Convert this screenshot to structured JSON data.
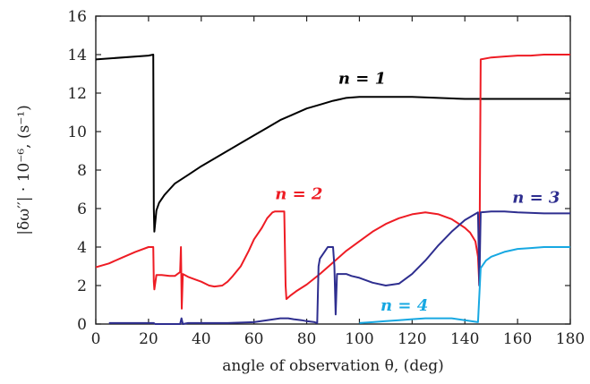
{
  "chart_data": {
    "type": "line",
    "title": "",
    "xlabel": "angle of observation θ, (deg)",
    "ylabel": "|δω′′| · 10⁻⁶, (s⁻¹)",
    "xlim": [
      0,
      180
    ],
    "ylim": [
      0,
      16
    ],
    "xticks": [
      "0",
      "20",
      "40",
      "60",
      "80",
      "100",
      "120",
      "140",
      "160",
      "180"
    ],
    "yticks": [
      "0",
      "2",
      "4",
      "6",
      "8",
      "10",
      "12",
      "14",
      "16"
    ],
    "grid": false,
    "legend": "none",
    "series": [
      {
        "name": "n = 1",
        "color": "#000000",
        "label_at": [
          92,
          12.5
        ],
        "x": [
          0,
          20,
          21.8,
          22,
          22.2,
          23,
          24,
          26,
          28,
          30,
          35,
          40,
          45,
          50,
          55,
          60,
          65,
          70,
          75,
          80,
          85,
          90,
          95,
          100,
          110,
          120,
          130,
          140,
          150,
          160,
          170,
          180
        ],
        "y": [
          13.75,
          13.95,
          14.0,
          6.0,
          4.8,
          5.9,
          6.3,
          6.7,
          7.0,
          7.3,
          7.75,
          8.2,
          8.6,
          9.0,
          9.4,
          9.8,
          10.2,
          10.6,
          10.9,
          11.2,
          11.4,
          11.6,
          11.75,
          11.8,
          11.8,
          11.8,
          11.75,
          11.7,
          11.7,
          11.7,
          11.7,
          11.7
        ]
      },
      {
        "name": "n = 2",
        "color": "#ee1c24",
        "label_at": [
          68,
          6.5
        ],
        "x": [
          0,
          5,
          10,
          15,
          20,
          21.8,
          22,
          22.2,
          23,
          25,
          28,
          30,
          31,
          32,
          32.3,
          32.6,
          33,
          35,
          38,
          40,
          43,
          45,
          48,
          50,
          52,
          55,
          58,
          60,
          63,
          65,
          67,
          68,
          70,
          71.5,
          72,
          72.3,
          74,
          76,
          80,
          85,
          90,
          95,
          100,
          105,
          110,
          115,
          120,
          125,
          130,
          135,
          140,
          142,
          144,
          145,
          145.5,
          146,
          150,
          155,
          160,
          165,
          170,
          175,
          180
        ],
        "y": [
          2.95,
          3.15,
          3.45,
          3.75,
          4.0,
          4.0,
          2.2,
          1.8,
          2.55,
          2.55,
          2.5,
          2.5,
          2.6,
          2.7,
          4.0,
          0.8,
          2.6,
          2.45,
          2.3,
          2.2,
          2.0,
          1.95,
          2.0,
          2.2,
          2.5,
          3.0,
          3.8,
          4.4,
          5.0,
          5.5,
          5.8,
          5.85,
          5.85,
          5.85,
          2.0,
          1.3,
          1.5,
          1.7,
          2.05,
          2.6,
          3.2,
          3.8,
          4.3,
          4.8,
          5.2,
          5.5,
          5.7,
          5.8,
          5.7,
          5.45,
          5.0,
          4.75,
          4.3,
          3.5,
          2.0,
          13.75,
          13.85,
          13.9,
          13.95,
          13.95,
          14.0,
          14.0,
          14.0
        ]
      },
      {
        "name": "n = 3",
        "color": "#2e2e8f",
        "label_at": [
          158,
          6.3
        ],
        "x": [
          5,
          10,
          15,
          20,
          22,
          22.5,
          30,
          32,
          32.5,
          33,
          35,
          40,
          50,
          60,
          65,
          70,
          73,
          75,
          78,
          80,
          83,
          84,
          84.5,
          85,
          87,
          88,
          90,
          90.5,
          91,
          91.5,
          93,
          95,
          97,
          100,
          105,
          110,
          115,
          120,
          125,
          130,
          135,
          140,
          145,
          145.5,
          146,
          150,
          155,
          160,
          170,
          180
        ],
        "y": [
          0.05,
          0.05,
          0.05,
          0.05,
          0.05,
          0.0,
          0.0,
          0.0,
          0.3,
          0.0,
          0.05,
          0.05,
          0.05,
          0.1,
          0.2,
          0.3,
          0.3,
          0.25,
          0.2,
          0.15,
          0.1,
          0.05,
          3.0,
          3.4,
          3.8,
          4.0,
          4.0,
          3.0,
          0.5,
          2.6,
          2.6,
          2.6,
          2.5,
          2.4,
          2.15,
          2.0,
          2.1,
          2.6,
          3.3,
          4.1,
          4.8,
          5.4,
          5.8,
          2.0,
          5.8,
          5.85,
          5.85,
          5.8,
          5.75,
          5.75
        ]
      },
      {
        "name": "n = 4",
        "color": "#17a8e2",
        "label_at": [
          108,
          0.7
        ],
        "x": [
          100,
          105,
          110,
          115,
          120,
          125,
          130,
          135,
          140,
          145,
          146,
          148,
          150,
          155,
          160,
          165,
          170,
          175,
          180
        ],
        "y": [
          0.05,
          0.1,
          0.15,
          0.2,
          0.25,
          0.3,
          0.3,
          0.3,
          0.2,
          0.1,
          2.9,
          3.3,
          3.5,
          3.75,
          3.9,
          3.95,
          4.0,
          4.0,
          4.0
        ]
      }
    ]
  }
}
